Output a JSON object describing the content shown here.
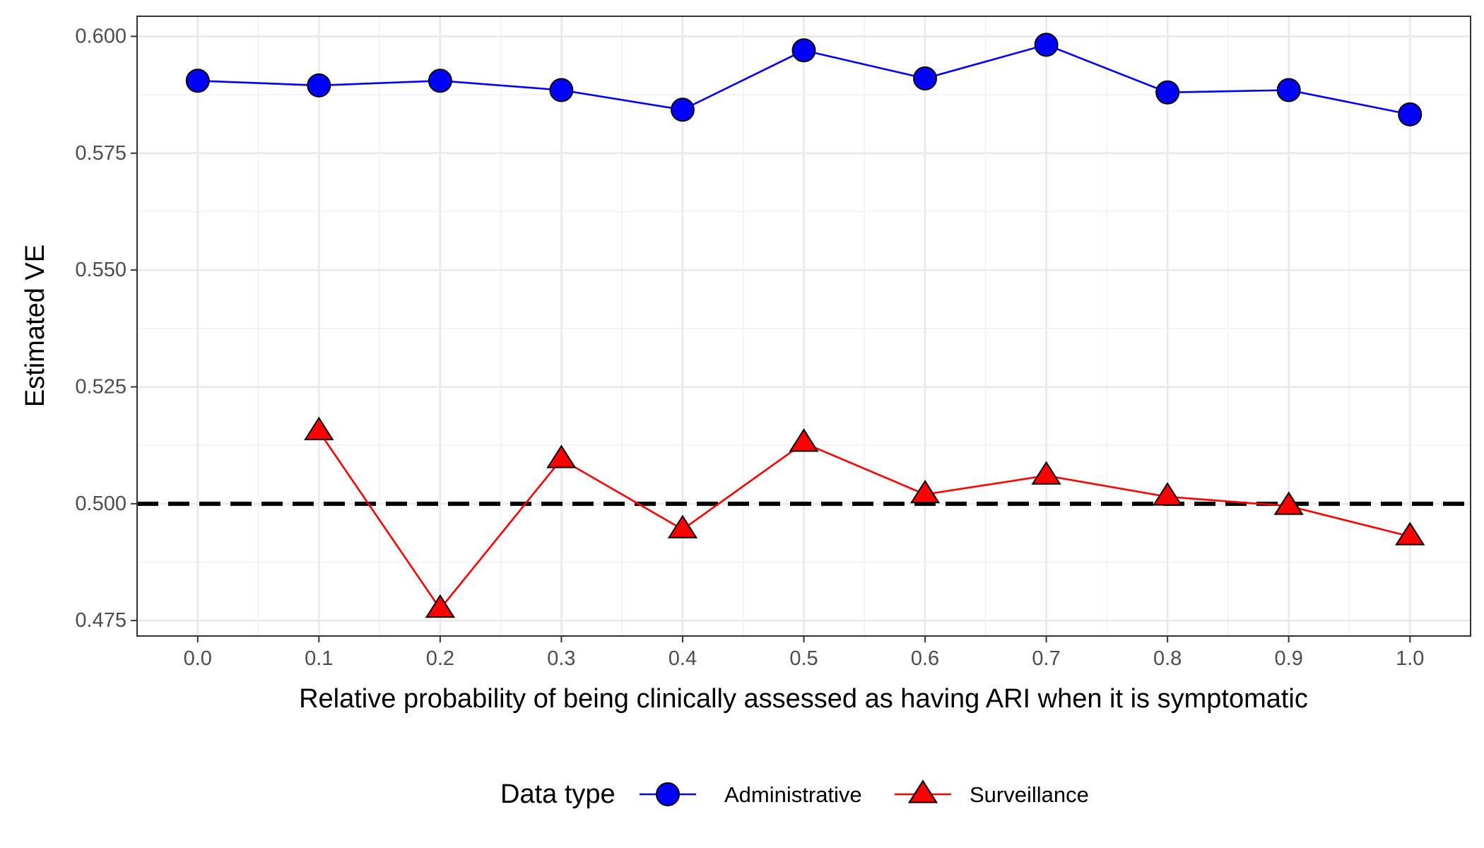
{
  "chart_data": {
    "type": "line",
    "xlabel": "Relative probability of being clinically assessed as having ARI when it is symptomatic",
    "ylabel": "Estimated VE",
    "x": [
      0.0,
      0.1,
      0.2,
      0.3,
      0.4,
      0.5,
      0.6,
      0.7,
      0.8,
      0.9,
      1.0
    ],
    "x_tick_labels": [
      "0.0",
      "0.1",
      "0.2",
      "0.3",
      "0.4",
      "0.5",
      "0.6",
      "0.7",
      "0.8",
      "0.9",
      "1.0"
    ],
    "y_ticks": [
      0.475,
      0.5,
      0.525,
      0.55,
      0.575,
      0.6
    ],
    "y_tick_labels": [
      "0.475",
      "0.500",
      "0.525",
      "0.550",
      "0.575",
      "0.600"
    ],
    "xlim": [
      -0.05,
      1.05
    ],
    "ylim": [
      0.4717,
      0.6043
    ],
    "grid": true,
    "reference_line": {
      "y": 0.5,
      "style": "dashed",
      "color": "#000000"
    },
    "legend": {
      "title": "Data type",
      "position": "bottom"
    },
    "series": [
      {
        "name": "Administrative",
        "color": "#0000ff",
        "marker": "circle",
        "x": [
          0.0,
          0.1,
          0.2,
          0.3,
          0.4,
          0.5,
          0.6,
          0.7,
          0.8,
          0.9,
          1.0
        ],
        "values": [
          0.5905,
          0.5895,
          0.5905,
          0.5885,
          0.5843,
          0.597,
          0.591,
          0.5982,
          0.588,
          0.5885,
          0.5833
        ]
      },
      {
        "name": "Surveillance",
        "color": "#ff0000",
        "marker": "triangle",
        "x": [
          0.1,
          0.2,
          0.3,
          0.4,
          0.5,
          0.6,
          0.7,
          0.8,
          0.9,
          1.0
        ],
        "values": [
          0.5155,
          0.4775,
          0.5095,
          0.4945,
          0.513,
          0.502,
          0.506,
          0.5015,
          0.4995,
          0.493
        ]
      }
    ]
  }
}
